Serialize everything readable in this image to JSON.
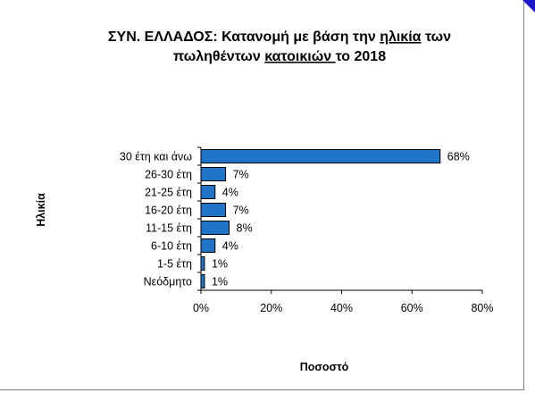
{
  "chart_data": {
    "type": "bar",
    "orientation": "horizontal",
    "title_line1_prefix": "ΣΥΝ. ΕΛΛΑΔΟΣ:  Κατανομή με βάση την ",
    "title_line1_underlined": "ηλικία",
    "title_line1_suffix": " των",
    "title_line2_prefix": "πωληθέντων ",
    "title_line2_underlined": "κατοικιών ",
    "title_line2_suffix": "το 2018",
    "xlabel": "Ποσοστό",
    "ylabel": "Ηλικία",
    "categories": [
      "30 έτη και άνω",
      "26-30 έτη",
      "21-25 έτη",
      "16-20 έτη",
      "11-15 έτη",
      "6-10 έτη",
      "1-5 έτη",
      "Νεόδμητο"
    ],
    "values": [
      68,
      7,
      4,
      7,
      8,
      4,
      1,
      1
    ],
    "value_labels": [
      "68%",
      "7%",
      "4%",
      "7%",
      "8%",
      "4%",
      "1%",
      "1%"
    ],
    "xlim": [
      0,
      80
    ],
    "xticks": [
      0,
      20,
      40,
      60,
      80
    ],
    "xtick_labels": [
      "0%",
      "20%",
      "40%",
      "60%",
      "80%"
    ],
    "bar_color": "#1f74c8",
    "grid": false
  }
}
